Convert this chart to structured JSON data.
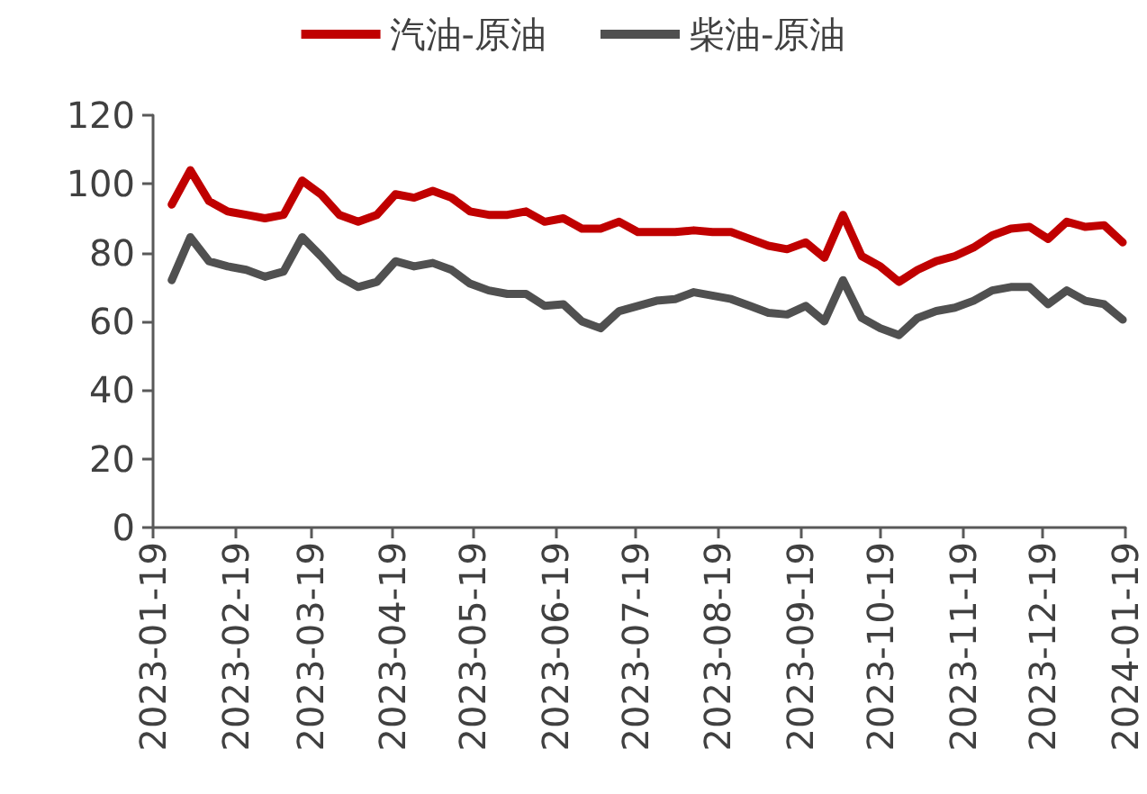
{
  "chart_data": {
    "type": "line",
    "legend": "top",
    "grid": false,
    "marker": "none",
    "line_style": "solid",
    "x": [
      "2023-01-26",
      "2023-02-02",
      "2023-02-09",
      "2023-02-16",
      "2023-02-23",
      "2023-03-02",
      "2023-03-09",
      "2023-03-16",
      "2023-03-23",
      "2023-03-30",
      "2023-04-06",
      "2023-04-13",
      "2023-04-20",
      "2023-04-27",
      "2023-05-04",
      "2023-05-11",
      "2023-05-18",
      "2023-05-25",
      "2023-06-01",
      "2023-06-08",
      "2023-06-15",
      "2023-06-22",
      "2023-06-29",
      "2023-07-06",
      "2023-07-13",
      "2023-07-20",
      "2023-07-27",
      "2023-08-03",
      "2023-08-10",
      "2023-08-17",
      "2023-08-24",
      "2023-08-31",
      "2023-09-07",
      "2023-09-14",
      "2023-09-21",
      "2023-09-28",
      "2023-10-05",
      "2023-10-12",
      "2023-10-19",
      "2023-10-26",
      "2023-11-02",
      "2023-11-09",
      "2023-11-16",
      "2023-11-23",
      "2023-11-30",
      "2023-12-07",
      "2023-12-14",
      "2023-12-21",
      "2023-12-28",
      "2024-01-04",
      "2024-01-11",
      "2024-01-18"
    ],
    "series": [
      {
        "name": "汽油-原油",
        "color": "#c00000",
        "values": [
          94,
          104,
          95,
          92,
          91,
          90,
          91,
          101,
          97,
          91,
          89,
          91,
          97,
          96,
          98,
          96,
          92,
          91,
          91,
          92,
          89,
          90,
          87,
          87,
          89,
          86,
          86,
          86,
          86.5,
          86,
          86,
          84,
          82,
          81,
          83,
          78.5,
          91,
          79,
          76,
          71.5,
          75,
          77.5,
          79,
          81.5,
          85,
          87,
          87.5,
          84,
          89,
          87.5,
          88,
          83
        ]
      },
      {
        "name": "柴油-原油",
        "color": "#505050",
        "values": [
          72,
          84.5,
          77.5,
          76,
          75,
          73,
          74.5,
          84.5,
          79,
          73,
          70,
          71.5,
          77.5,
          76,
          77,
          75,
          71,
          69,
          68,
          68,
          64.5,
          65,
          60,
          58,
          63,
          64.5,
          66,
          66.5,
          68.5,
          67.5,
          66.5,
          64.5,
          62.5,
          62,
          64.5,
          60,
          72,
          61,
          58,
          56,
          61,
          63,
          64,
          66,
          69,
          70,
          70,
          65,
          69,
          66,
          65,
          60.5
        ]
      }
    ],
    "xlim": [
      "2023-01-19",
      "2024-01-19"
    ],
    "xticks": [
      "2023-01-19",
      "2023-02-19",
      "2023-03-19",
      "2023-04-19",
      "2023-05-19",
      "2023-06-19",
      "2023-07-19",
      "2023-08-19",
      "2023-09-19",
      "2023-10-19",
      "2023-11-19",
      "2023-12-19",
      "2024-01-19"
    ],
    "ylim": [
      0,
      120
    ],
    "yticks": [
      0,
      20,
      40,
      60,
      80,
      100,
      120
    ]
  }
}
